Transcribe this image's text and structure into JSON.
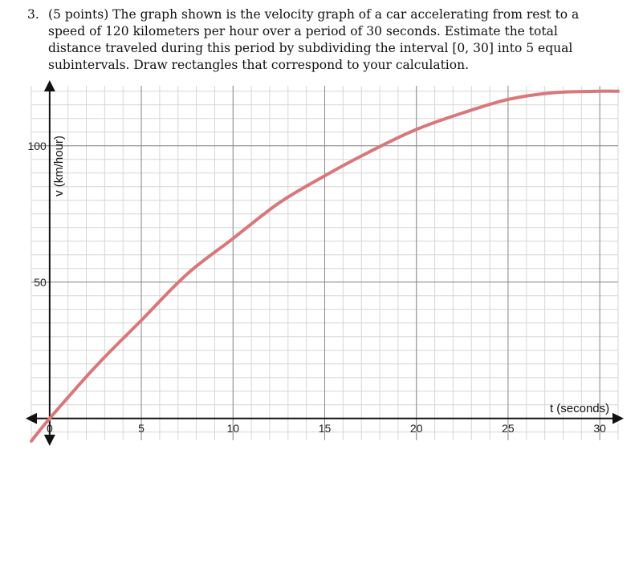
{
  "problem": {
    "number": "3.",
    "text": "(5 points) The graph shown is the velocity graph of a car accelerating from rest to a speed of 120 kilometers per hour over a period of 30 seconds. Estimate the total distance traveled during this period by subdividing the interval [0, 30] into 5 equal subintervals. Draw rectangles that correspond to your calculation."
  },
  "chart_data": {
    "type": "line",
    "xlabel": "t (seconds)",
    "ylabel": "v (km/hour)",
    "xlim": [
      -1,
      31
    ],
    "ylim": [
      -8,
      122
    ],
    "x_ticks": [
      0,
      5,
      10,
      15,
      20,
      25,
      30
    ],
    "x_tick_labels": [
      "0",
      "5",
      "10",
      "15",
      "20",
      "25",
      "30"
    ],
    "y_ticks": [
      50,
      100
    ],
    "y_tick_labels": [
      "50",
      "100"
    ],
    "grid": true,
    "line_color": "#d9777a",
    "series": [
      {
        "x": [
          -1,
          0,
          2.5,
          5,
          7.5,
          10,
          12.5,
          15,
          17.5,
          20,
          22.5,
          25,
          27.5,
          30,
          31
        ],
        "y": [
          -8.3,
          0,
          19,
          36,
          53,
          66,
          79,
          89,
          98,
          106,
          112,
          117,
          119.5,
          120,
          120
        ]
      }
    ]
  }
}
